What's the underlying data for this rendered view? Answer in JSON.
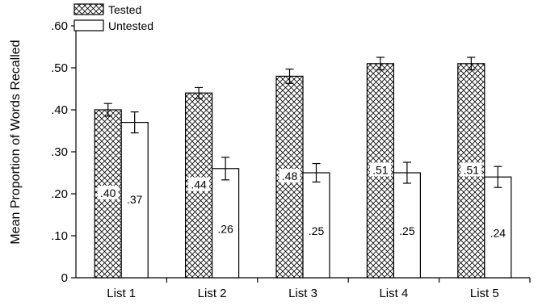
{
  "chart_data": {
    "type": "bar",
    "title": "",
    "xlabel": "",
    "ylabel": "Mean Proportion of Words Recalled",
    "categories": [
      "List 1",
      "List 2",
      "List 3",
      "List 4",
      "List 5"
    ],
    "series": [
      {
        "name": "Tested",
        "values": [
          0.4,
          0.44,
          0.48,
          0.51,
          0.51
        ],
        "labels": [
          ".40",
          ".44",
          ".48",
          ".51",
          ".51"
        ],
        "errors": [
          0.015,
          0.013,
          0.017,
          0.015,
          0.015
        ],
        "pattern": "crosshatch"
      },
      {
        "name": "Untested",
        "values": [
          0.37,
          0.26,
          0.25,
          0.25,
          0.24
        ],
        "labels": [
          ".37",
          ".26",
          ".25",
          ".25",
          ".24"
        ],
        "errors": [
          0.025,
          0.027,
          0.022,
          0.025,
          0.025
        ],
        "pattern": "none"
      }
    ],
    "ylim": [
      0,
      0.6
    ],
    "yticks": [
      0,
      0.1,
      0.2,
      0.3,
      0.4,
      0.5,
      0.6
    ],
    "ytick_labels": [
      "0",
      ".10",
      ".20",
      ".30",
      ".40",
      ".50",
      ".60"
    ],
    "legend": {
      "position": "top-left",
      "entries": [
        "Tested",
        "Untested"
      ]
    },
    "grid": false,
    "error_bars": true
  }
}
